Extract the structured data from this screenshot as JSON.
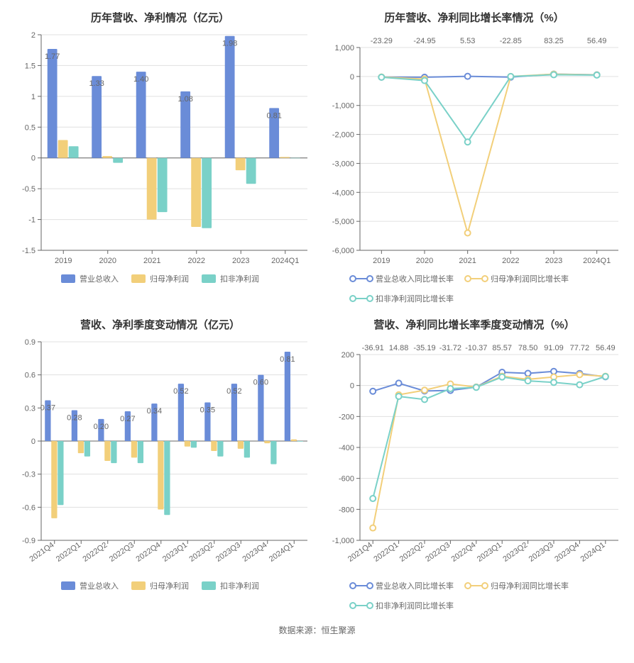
{
  "colors": {
    "series1": "#6a8cd8",
    "series2": "#f2cf7a",
    "series3": "#7ad1c8",
    "axis": "#666666",
    "grid": "#e0e0e0",
    "text": "#666666",
    "title": "#333333",
    "bg": "#ffffff"
  },
  "fonts": {
    "title_size": 15,
    "axis_size": 11,
    "label_size": 11
  },
  "source_label": "数据来源：恒生聚源",
  "chart1": {
    "type": "bar",
    "title": "历年营收、净利情况（亿元）",
    "categories": [
      "2019",
      "2020",
      "2021",
      "2022",
      "2023",
      "2024Q1"
    ],
    "series": [
      {
        "name": "营业总收入",
        "color_key": "series1",
        "values": [
          1.77,
          1.33,
          1.4,
          1.08,
          1.98,
          0.81
        ]
      },
      {
        "name": "归母净利润",
        "color_key": "series2",
        "values": [
          0.29,
          0.03,
          -1.0,
          -1.12,
          -0.2,
          0.015
        ]
      },
      {
        "name": "扣非净利润",
        "color_key": "series3",
        "values": [
          0.19,
          -0.08,
          -0.88,
          -1.14,
          -0.42,
          -0.005
        ]
      }
    ],
    "bar_labels": [
      "1.77",
      "1.33",
      "1.40",
      "1.08",
      "1.98",
      "0.81"
    ],
    "ylim": [
      -1.5,
      2.0
    ],
    "ytick_step": 0.5,
    "bar_group_width": 0.72
  },
  "chart2": {
    "type": "line",
    "title": "历年营收、净利同比增长率情况（%）",
    "categories": [
      "2019",
      "2020",
      "2021",
      "2022",
      "2023",
      "2024Q1"
    ],
    "series": [
      {
        "name": "营业总收入同比增长率",
        "color_key": "series1",
        "values": [
          -23.29,
          -24.95,
          5.53,
          -22.85,
          83.25,
          56.49
        ]
      },
      {
        "name": "归母净利润同比增长率",
        "color_key": "series2",
        "values": [
          -20,
          -90,
          -5400,
          0,
          80,
          55
        ]
      },
      {
        "name": "扣非净利润同比增长率",
        "color_key": "series3",
        "values": [
          -25,
          -140,
          -2260,
          0,
          60,
          50
        ]
      }
    ],
    "top_labels": [
      "-23.29",
      "-24.95",
      "5.53",
      "-22.85",
      "83.25",
      "56.49"
    ],
    "ylim": [
      -6000,
      1000
    ],
    "ytick_step": 1000
  },
  "chart3": {
    "type": "bar",
    "title": "营收、净利季度变动情况（亿元）",
    "categories": [
      "2021Q4",
      "2022Q1",
      "2022Q2",
      "2022Q3",
      "2022Q4",
      "2023Q1",
      "2023Q2",
      "2023Q3",
      "2023Q4",
      "2024Q1"
    ],
    "rotate_x": true,
    "series": [
      {
        "name": "营业总收入",
        "color_key": "series1",
        "values": [
          0.37,
          0.28,
          0.2,
          0.27,
          0.34,
          0.52,
          0.35,
          0.52,
          0.6,
          0.81
        ]
      },
      {
        "name": "归母净利润",
        "color_key": "series2",
        "values": [
          -0.7,
          -0.11,
          -0.18,
          -0.15,
          -0.62,
          -0.05,
          -0.09,
          -0.07,
          -0.02,
          0.015
        ]
      },
      {
        "name": "扣非净利润",
        "color_key": "series3",
        "values": [
          -0.58,
          -0.14,
          -0.2,
          -0.2,
          -0.67,
          -0.06,
          -0.14,
          -0.15,
          -0.21,
          -0.005
        ]
      }
    ],
    "bar_labels": [
      "0.37",
      "0.28",
      "0.20",
      "0.27",
      "0.34",
      "0.52",
      "0.35",
      "0.52",
      "0.60",
      "0.81"
    ],
    "ylim": [
      -0.9,
      0.9
    ],
    "ytick_step": 0.3,
    "bar_group_width": 0.72
  },
  "chart4": {
    "type": "line",
    "title": "营收、净利同比增长率季度变动情况（%）",
    "categories": [
      "2021Q4",
      "2022Q1",
      "2022Q2",
      "2022Q3",
      "2022Q4",
      "2023Q1",
      "2023Q2",
      "2023Q3",
      "2023Q4",
      "2024Q1"
    ],
    "rotate_x": true,
    "series": [
      {
        "name": "营业总收入同比增长率",
        "color_key": "series1",
        "values": [
          -36.91,
          14.88,
          -35.19,
          -31.72,
          -10.37,
          85.57,
          78.5,
          91.09,
          77.72,
          56.49
        ]
      },
      {
        "name": "归母净利润同比增长率",
        "color_key": "series2",
        "values": [
          -920,
          -60,
          -30,
          10,
          -10,
          60,
          40,
          55,
          70,
          60
        ]
      },
      {
        "name": "扣非净利润同比增长率",
        "color_key": "series3",
        "values": [
          -730,
          -70,
          -90,
          -20,
          -12,
          55,
          30,
          20,
          5,
          58
        ]
      }
    ],
    "top_labels": [
      "-36.91",
      "14.88",
      "-35.19",
      "-31.72",
      "-10.37",
      "85.57",
      "78.50",
      "91.09",
      "77.72",
      "56.49"
    ],
    "ylim": [
      -1000,
      200
    ],
    "ytick_step": 200
  },
  "legends": {
    "bar": [
      "营业总收入",
      "归母净利润",
      "扣非净利润"
    ],
    "line": [
      "营业总收入同比增长率",
      "归母净利润同比增长率",
      "扣非净利润同比增长率"
    ]
  }
}
